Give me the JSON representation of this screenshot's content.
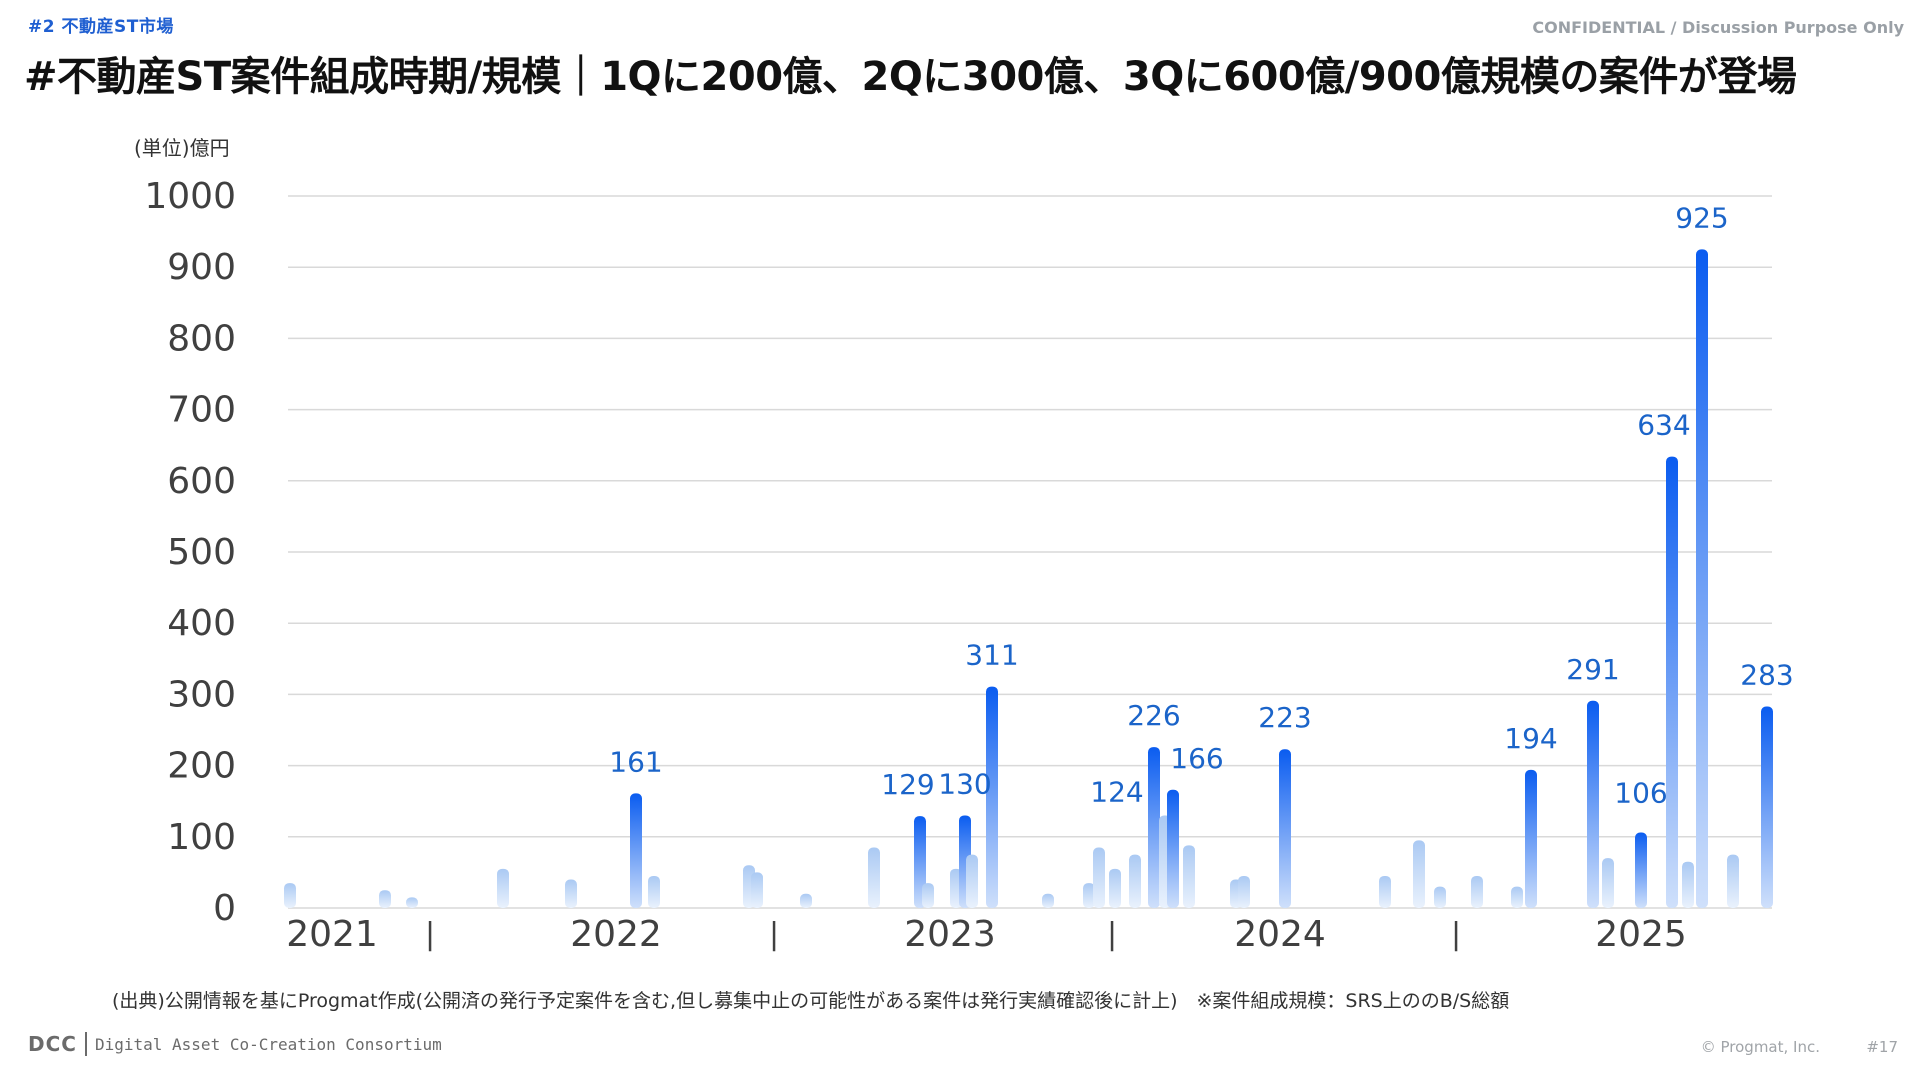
{
  "header": {
    "section_tag": "#2 不動産ST市場",
    "confidential": "CONFIDENTIAL / Discussion Purpose Only",
    "title": "#不動産ST案件組成時期/規模｜1Qに200億、2Qに300億、3Qに600億/900億規模の案件が登場"
  },
  "chart_data": {
    "type": "bar",
    "unit_label": "(単位)億円",
    "ylim": [
      0,
      1000
    ],
    "yticks": [
      0,
      100,
      200,
      300,
      400,
      500,
      600,
      700,
      800,
      900,
      1000
    ],
    "grid": true,
    "year_labels": [
      "2021",
      "2022",
      "2023",
      "2024",
      "2025"
    ],
    "year_separators": [
      "|",
      "|",
      "|",
      "|"
    ],
    "bars": [
      {
        "v": 35,
        "hl": false
      },
      {
        "v": 25,
        "hl": false
      },
      {
        "v": 15,
        "hl": false
      },
      {
        "v": 55,
        "hl": false
      },
      {
        "v": 40,
        "hl": false
      },
      {
        "v": 161,
        "hl": true,
        "label": "161"
      },
      {
        "v": 45,
        "hl": false
      },
      {
        "v": 60,
        "hl": false
      },
      {
        "v": 50,
        "hl": false
      },
      {
        "v": 20,
        "hl": false
      },
      {
        "v": 85,
        "hl": false
      },
      {
        "v": 129,
        "hl": true,
        "label": "129"
      },
      {
        "v": 35,
        "hl": false
      },
      {
        "v": 55,
        "hl": false
      },
      {
        "v": 130,
        "hl": true,
        "label": "130"
      },
      {
        "v": 75,
        "hl": false
      },
      {
        "v": 311,
        "hl": true,
        "label": "311"
      },
      {
        "v": 20,
        "hl": false
      },
      {
        "v": 35,
        "hl": false
      },
      {
        "v": 85,
        "hl": false
      },
      {
        "v": 55,
        "hl": false
      },
      {
        "v": 75,
        "hl": false
      },
      {
        "v": 226,
        "hl": true,
        "label": "226"
      },
      {
        "v": 130,
        "hl": false
      },
      {
        "v": 166,
        "hl": true,
        "label": "166"
      },
      {
        "v": 88,
        "hl": false
      },
      {
        "v": 40,
        "hl": false
      },
      {
        "v": 45,
        "hl": false
      },
      {
        "v": 223,
        "hl": true,
        "label": "223"
      },
      {
        "v": 45,
        "hl": false
      },
      {
        "v": 95,
        "hl": false
      },
      {
        "v": 30,
        "hl": false
      },
      {
        "v": 45,
        "hl": false
      },
      {
        "v": 30,
        "hl": false
      },
      {
        "v": 194,
        "hl": true,
        "label": "194"
      },
      {
        "v": 291,
        "hl": true,
        "label": "291"
      },
      {
        "v": 70,
        "hl": false
      },
      {
        "v": 106,
        "hl": true,
        "label": "106"
      },
      {
        "v": 634,
        "hl": true,
        "label": "634"
      },
      {
        "v": 65,
        "hl": false
      },
      {
        "v": 925,
        "hl": true,
        "label": "925"
      },
      {
        "v": 75,
        "hl": false
      },
      {
        "v": 283,
        "hl": true,
        "label": "283"
      }
    ],
    "unlabeled_highlight": {
      "v": 124,
      "label": "124"
    }
  },
  "source_note": "(出典)公開情報を基にProgmat作成(公開済の発行予定案件を含む,但し募集中止の可能性がある案件は発行実績確認後に計上)　※案件組成規模：SRS上ののB/S総額",
  "footer": {
    "logo": "DCC",
    "consortium": "Digital Asset Co-Creation Consortium",
    "copyright": "© Progmat, Inc.",
    "page": "#17"
  },
  "colors": {
    "highlight_top": "#0a5cf0",
    "highlight_bottom": "#cfe0fb",
    "muted_top": "#aac9f3",
    "muted_bottom": "#eaf2fd",
    "label": "#1b64c9",
    "grid": "#d9d9d9",
    "axis_text": "#404040"
  }
}
